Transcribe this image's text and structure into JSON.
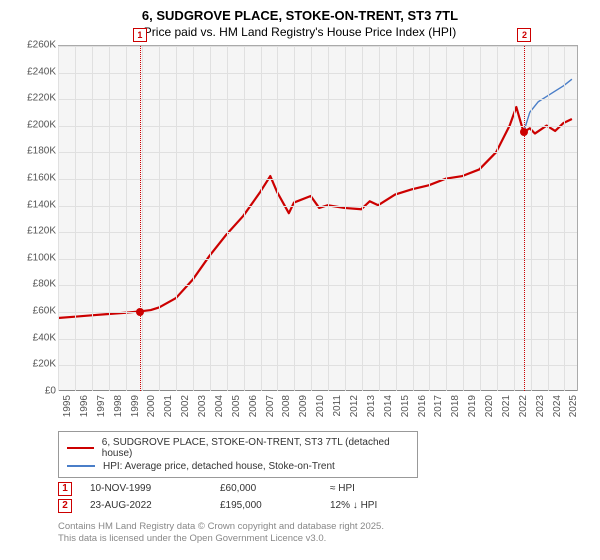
{
  "title_line1": "6, SUDGROVE PLACE, STOKE-ON-TRENT, ST3 7TL",
  "title_line2": "Price paid vs. HM Land Registry's House Price Index (HPI)",
  "chart": {
    "type": "line",
    "background_color": "#f5f5f5",
    "grid_color": "#e0e0e0",
    "x_min": 1995,
    "x_max": 2025.8,
    "y_min": 0,
    "y_max": 260000,
    "y_ticks": [
      0,
      20000,
      40000,
      60000,
      80000,
      100000,
      120000,
      140000,
      160000,
      180000,
      200000,
      220000,
      240000,
      260000
    ],
    "y_tick_labels": [
      "£0",
      "£20K",
      "£40K",
      "£60K",
      "£80K",
      "£100K",
      "£120K",
      "£140K",
      "£160K",
      "£180K",
      "£200K",
      "£220K",
      "£240K",
      "£260K"
    ],
    "x_ticks": [
      1995,
      1996,
      1997,
      1998,
      1999,
      2000,
      2001,
      2002,
      2003,
      2004,
      2005,
      2006,
      2007,
      2008,
      2009,
      2010,
      2011,
      2012,
      2013,
      2014,
      2015,
      2016,
      2017,
      2018,
      2019,
      2020,
      2021,
      2022,
      2023,
      2024,
      2025
    ],
    "axis_fontsize": 10,
    "series1": {
      "label": "6, SUDGROVE PLACE, STOKE-ON-TRENT, ST3 7TL (detached house)",
      "color": "#cc0000",
      "line_width": 2.2,
      "x": [
        1995,
        1996,
        1997,
        1998,
        1999,
        1999.85,
        2000.5,
        2001,
        2002,
        2003,
        2004,
        2005,
        2006,
        2007,
        2007.6,
        2008,
        2008.7,
        2009,
        2010,
        2010.5,
        2011,
        2012,
        2013,
        2013.5,
        2014,
        2015,
        2016,
        2017,
        2018,
        2019,
        2020,
        2021,
        2021.8,
        2022.2,
        2022.63,
        2023,
        2023.3,
        2024,
        2024.5,
        2025,
        2025.5
      ],
      "y": [
        55000,
        56000,
        57000,
        58000,
        59000,
        60000,
        61000,
        63000,
        70000,
        84000,
        102000,
        118000,
        132000,
        150000,
        162000,
        150000,
        134000,
        142000,
        147000,
        138000,
        140000,
        138000,
        137000,
        143000,
        140000,
        148000,
        152000,
        155000,
        160000,
        162000,
        167000,
        180000,
        200000,
        214000,
        195000,
        198000,
        194000,
        200000,
        196000,
        202000,
        205000
      ]
    },
    "series2": {
      "label": "HPI: Average price, detached house, Stoke-on-Trent",
      "color": "#4a7ec8",
      "line_width": 1.4,
      "x": [
        2022.63,
        2023,
        2023.5,
        2024,
        2024.5,
        2025,
        2025.5
      ],
      "y": [
        195000,
        210000,
        218000,
        222000,
        226000,
        230000,
        235000
      ]
    },
    "vlines": [
      {
        "x": 1999.85,
        "label": "1"
      },
      {
        "x": 2022.63,
        "label": "2"
      }
    ],
    "markers": [
      {
        "x": 1999.85,
        "y": 60000
      },
      {
        "x": 2022.63,
        "y": 195000
      }
    ]
  },
  "legend": {
    "row1_label": "6, SUDGROVE PLACE, STOKE-ON-TRENT, ST3 7TL (detached house)",
    "row2_label": "HPI: Average price, detached house, Stoke-on-Trent"
  },
  "transactions": [
    {
      "n": "1",
      "date": "10-NOV-1999",
      "price": "£60,000",
      "rel": "≈ HPI"
    },
    {
      "n": "2",
      "date": "23-AUG-2022",
      "price": "£195,000",
      "rel": "12% ↓ HPI"
    }
  ],
  "footer_line1": "Contains HM Land Registry data © Crown copyright and database right 2025.",
  "footer_line2": "This data is licensed under the Open Government Licence v3.0."
}
